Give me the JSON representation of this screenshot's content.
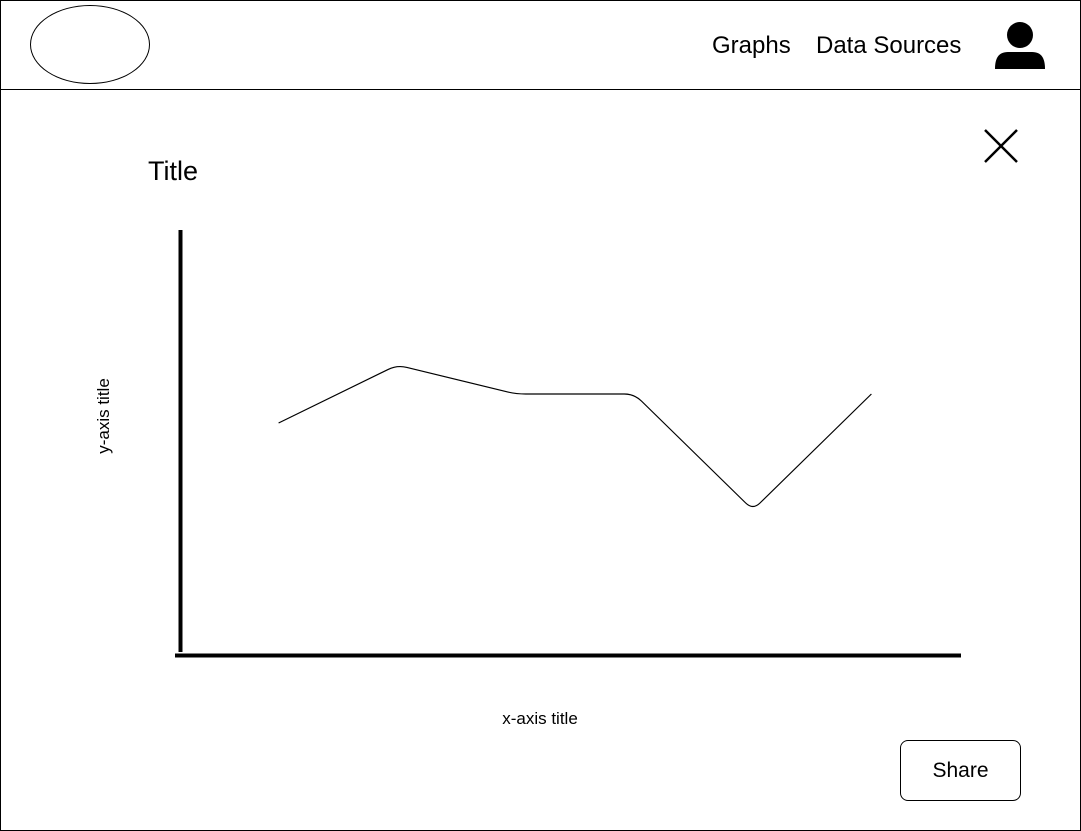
{
  "header": {
    "nav": [
      {
        "label": "Graphs"
      },
      {
        "label": "Data Sources"
      }
    ],
    "profile_icon": "user-icon"
  },
  "dialog": {
    "close_icon": "close-icon",
    "share_label": "Share"
  },
  "chart_data": {
    "type": "line",
    "title": "Title",
    "xlabel": "x-axis title",
    "ylabel": "y-axis title",
    "x": [
      1,
      2,
      3,
      4,
      5,
      6
    ],
    "series": [
      {
        "values": [
          4.0,
          5.0,
          4.5,
          4.5,
          2.5,
          4.5
        ]
      }
    ],
    "xlim": [
      0,
      7
    ],
    "ylim": [
      0,
      7.5
    ],
    "grid": false,
    "tick_labels_shown": false
  }
}
